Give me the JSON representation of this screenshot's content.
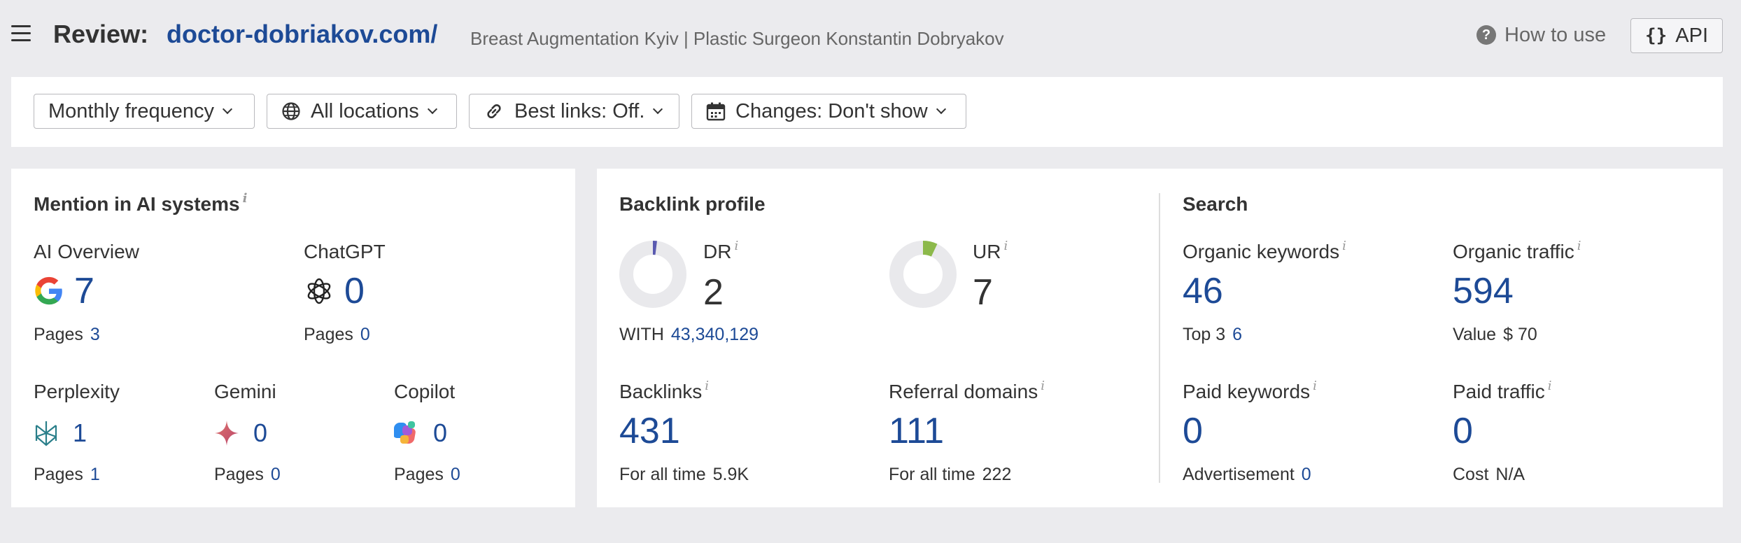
{
  "header": {
    "title_label": "Review:",
    "domain": "doctor-dobriakov.com/",
    "description": "Breast Augmentation Kyiv | Plastic Surgeon Konstantin Dobryakov",
    "how_to_use": "How to use",
    "api_label": "API"
  },
  "filters": [
    {
      "label": "Monthly frequency",
      "icon": "none"
    },
    {
      "label": "All locations",
      "icon": "globe-icon"
    },
    {
      "label": "Best links: Off.",
      "icon": "link-icon"
    },
    {
      "label": "Changes: Don't show",
      "icon": "calendar-icon"
    }
  ],
  "ai": {
    "title": "Mention in AI systems",
    "info": "i",
    "items": [
      {
        "name": "AI Overview",
        "value": "7",
        "pages_label": "Pages",
        "pages": "3",
        "icon": "google-icon"
      },
      {
        "name": "ChatGPT",
        "value": "0",
        "pages_label": "Pages",
        "pages": "0",
        "icon": "chatgpt-icon"
      },
      {
        "name": "Perplexity",
        "value": "1",
        "pages_label": "Pages",
        "pages": "1",
        "icon": "perplexity-icon"
      },
      {
        "name": "Gemini",
        "value": "0",
        "pages_label": "Pages",
        "pages": "0",
        "icon": "gemini-icon"
      },
      {
        "name": "Copilot",
        "value": "0",
        "pages_label": "Pages",
        "pages": "0",
        "icon": "copilot-icon"
      }
    ]
  },
  "backlink": {
    "title": "Backlink profile",
    "dr": {
      "label": "DR",
      "info": "i",
      "value": "2",
      "ratio": 0.02,
      "color": "#5a5ab0"
    },
    "with_label": "WITH",
    "with_value": "43,340,129",
    "ur": {
      "label": "UR",
      "info": "i",
      "value": "7",
      "ratio": 0.07,
      "color": "#8cb94b"
    },
    "backlinks": {
      "label": "Backlinks",
      "info": "i",
      "value": "431",
      "sub_label": "For all time",
      "sub_value": "5.9K"
    },
    "referral": {
      "label": "Referral domains",
      "info": "i",
      "value": "111",
      "sub_label": "For all time",
      "sub_value": "222"
    }
  },
  "search": {
    "title": "Search",
    "organic_keywords": {
      "label": "Organic keywords",
      "info": "i",
      "value": "46",
      "sub_label": "Top 3",
      "sub_value": "6"
    },
    "organic_traffic": {
      "label": "Organic traffic",
      "info": "i",
      "value": "594",
      "sub_label": "Value",
      "sub_value": "$ 70"
    },
    "paid_keywords": {
      "label": "Paid keywords",
      "info": "i",
      "value": "0",
      "sub_label": "Advertisement",
      "sub_value": "0"
    },
    "paid_traffic": {
      "label": "Paid traffic",
      "info": "i",
      "value": "0",
      "sub_label": "Cost",
      "sub_value": "N/A"
    }
  },
  "colors": {
    "accent": "#1d4a96",
    "background": "#ebebee",
    "donut_track": "#e9e9ec"
  }
}
